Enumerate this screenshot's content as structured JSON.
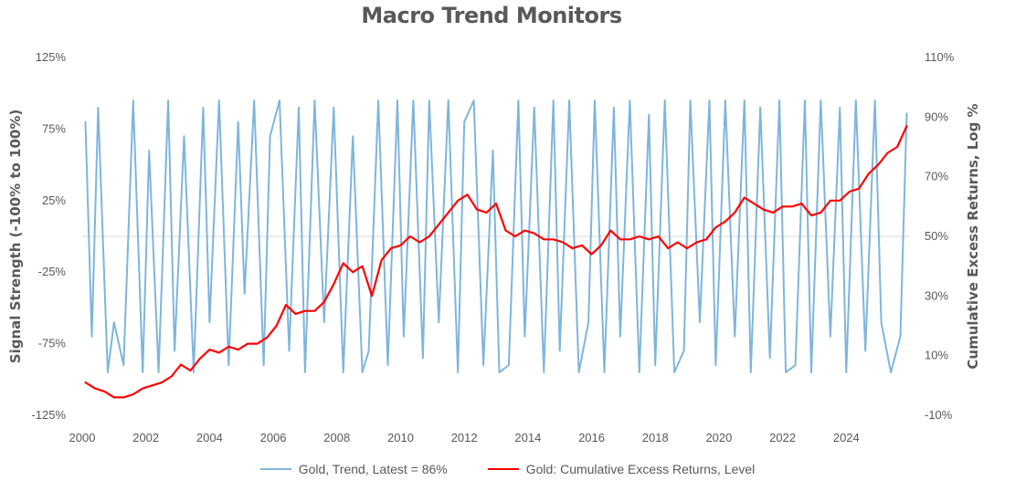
{
  "chart_data": {
    "type": "line",
    "title": "Macro Trend Monitors",
    "xlabel": "",
    "ylabel_left": "Signal Strength (-100% to 100%)",
    "ylabel_right": "Cumulative Excess Returns, Log %",
    "x_range": [
      2000.0,
      2026.0
    ],
    "x_ticks": [
      "2000",
      "2002",
      "2004",
      "2006",
      "2008",
      "2010",
      "2012",
      "2014",
      "2016",
      "2018",
      "2020",
      "2022",
      "2024"
    ],
    "y_left": {
      "range": [
        -125,
        125
      ],
      "ticks": [
        "125%",
        "75%",
        "25%",
        "-25%",
        "-75%",
        "-125%"
      ]
    },
    "y_right": {
      "range": [
        -10,
        110
      ],
      "ticks": [
        "110%",
        "90%",
        "70%",
        "50%",
        "30%",
        "10%",
        "-10%"
      ]
    },
    "grid": false,
    "zero_line": true,
    "legend_position": "bottom",
    "series": [
      {
        "name": "Gold, Trend, Latest = 86%",
        "axis": "left",
        "color": "#7fb5dc",
        "x": [
          2000.1,
          2000.3,
          2000.5,
          2000.8,
          2001.0,
          2001.3,
          2001.6,
          2001.9,
          2002.1,
          2002.4,
          2002.7,
          2002.9,
          2003.2,
          2003.5,
          2003.8,
          2004.0,
          2004.3,
          2004.6,
          2004.9,
          2005.1,
          2005.4,
          2005.7,
          2005.9,
          2006.2,
          2006.5,
          2006.8,
          2007.0,
          2007.3,
          2007.6,
          2007.9,
          2008.2,
          2008.5,
          2008.8,
          2009.0,
          2009.3,
          2009.6,
          2009.9,
          2010.1,
          2010.4,
          2010.7,
          2010.9,
          2011.2,
          2011.5,
          2011.8,
          2012.0,
          2012.3,
          2012.6,
          2012.9,
          2013.1,
          2013.4,
          2013.7,
          2013.9,
          2014.2,
          2014.5,
          2014.8,
          2015.0,
          2015.3,
          2015.6,
          2015.9,
          2016.1,
          2016.4,
          2016.7,
          2016.9,
          2017.2,
          2017.5,
          2017.8,
          2018.0,
          2018.3,
          2018.6,
          2018.9,
          2019.1,
          2019.4,
          2019.7,
          2019.9,
          2020.2,
          2020.5,
          2020.8,
          2021.0,
          2021.3,
          2021.6,
          2021.9,
          2022.1,
          2022.4,
          2022.7,
          2022.9,
          2023.2,
          2023.5,
          2023.8,
          2024.0,
          2024.3,
          2024.6,
          2024.9,
          2025.1,
          2025.4,
          2025.7,
          2025.9
        ],
        "values": [
          80,
          -70,
          90,
          -95,
          -60,
          -90,
          95,
          -95,
          60,
          -95,
          95,
          -80,
          70,
          -95,
          90,
          -60,
          95,
          -90,
          80,
          -40,
          95,
          -90,
          70,
          95,
          -80,
          90,
          -95,
          95,
          -60,
          90,
          -95,
          70,
          -95,
          -80,
          95,
          -90,
          95,
          -70,
          95,
          -85,
          95,
          -60,
          95,
          -95,
          80,
          95,
          -90,
          60,
          -95,
          -90,
          95,
          -70,
          90,
          -95,
          95,
          -80,
          95,
          -95,
          -60,
          95,
          -95,
          90,
          -70,
          95,
          -95,
          85,
          -90,
          95,
          -95,
          -80,
          95,
          -60,
          95,
          -90,
          95,
          -70,
          95,
          -95,
          90,
          -85,
          95,
          -95,
          -90,
          95,
          -95,
          95,
          -70,
          90,
          -95,
          95,
          -80,
          95,
          -60,
          -95,
          -70,
          86
        ],
        "latest": "86%"
      },
      {
        "name": "Gold: Cumulative Excess Returns, Level",
        "axis": "right",
        "color": "#ff0000",
        "x": [
          2000.1,
          2000.4,
          2000.7,
          2001.0,
          2001.3,
          2001.6,
          2001.9,
          2002.2,
          2002.5,
          2002.8,
          2003.1,
          2003.4,
          2003.7,
          2004.0,
          2004.3,
          2004.6,
          2004.9,
          2005.2,
          2005.5,
          2005.8,
          2006.1,
          2006.4,
          2006.7,
          2007.0,
          2007.3,
          2007.6,
          2007.9,
          2008.2,
          2008.5,
          2008.8,
          2009.1,
          2009.4,
          2009.7,
          2010.0,
          2010.3,
          2010.6,
          2010.9,
          2011.2,
          2011.5,
          2011.8,
          2012.1,
          2012.4,
          2012.7,
          2013.0,
          2013.3,
          2013.6,
          2013.9,
          2014.2,
          2014.5,
          2014.8,
          2015.1,
          2015.4,
          2015.7,
          2016.0,
          2016.3,
          2016.6,
          2016.9,
          2017.2,
          2017.5,
          2017.8,
          2018.1,
          2018.4,
          2018.7,
          2019.0,
          2019.3,
          2019.6,
          2019.9,
          2020.2,
          2020.5,
          2020.8,
          2021.1,
          2021.4,
          2021.7,
          2022.0,
          2022.3,
          2022.6,
          2022.9,
          2023.2,
          2023.5,
          2023.8,
          2024.1,
          2024.4,
          2024.7,
          2025.0,
          2025.3,
          2025.6,
          2025.9
        ],
        "values": [
          1,
          -1,
          -2,
          -4,
          -4,
          -3,
          -1,
          0,
          1,
          3,
          7,
          5,
          9,
          12,
          11,
          13,
          12,
          14,
          14,
          16,
          20,
          27,
          24,
          25,
          25,
          28,
          34,
          41,
          38,
          40,
          30,
          42,
          46,
          47,
          50,
          48,
          50,
          54,
          58,
          62,
          64,
          59,
          58,
          61,
          52,
          50,
          52,
          51,
          49,
          49,
          48,
          46,
          47,
          44,
          47,
          52,
          49,
          49,
          50,
          49,
          50,
          46,
          48,
          46,
          48,
          49,
          53,
          55,
          58,
          63,
          61,
          59,
          58,
          60,
          60,
          61,
          57,
          58,
          62,
          62,
          65,
          66,
          71,
          74,
          78,
          80,
          87
        ]
      }
    ]
  }
}
